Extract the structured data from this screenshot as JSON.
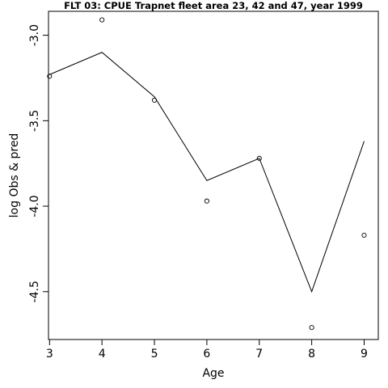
{
  "chart_data": {
    "type": "line",
    "title": "FLT 03: CPUE Trapnet fleet area 23, 42 and 47, year 1999",
    "xlabel": "Age",
    "ylabel": "log Obs & pred",
    "x": [
      3,
      4,
      5,
      6,
      7,
      8,
      9
    ],
    "xlim": [
      2.98,
      9.27
    ],
    "ylim": [
      -4.78,
      -2.86
    ],
    "xticks": [
      "3",
      "4",
      "5",
      "6",
      "7",
      "8",
      "9"
    ],
    "yticks": [
      "-3.0",
      "-3.5",
      "-4.0",
      "-4.5"
    ],
    "ytick_values": [
      -3.0,
      -3.5,
      -4.0,
      -4.5
    ],
    "series": [
      {
        "role": "predicted",
        "style": "line",
        "values": [
          -3.23,
          -3.1,
          -3.36,
          -3.85,
          -3.72,
          -4.5,
          -3.62
        ]
      },
      {
        "role": "observed",
        "style": "points",
        "values": [
          -3.24,
          -2.91,
          -3.38,
          -3.97,
          -3.72,
          -4.71,
          -4.17
        ]
      }
    ],
    "grid": false,
    "legend": "none"
  }
}
